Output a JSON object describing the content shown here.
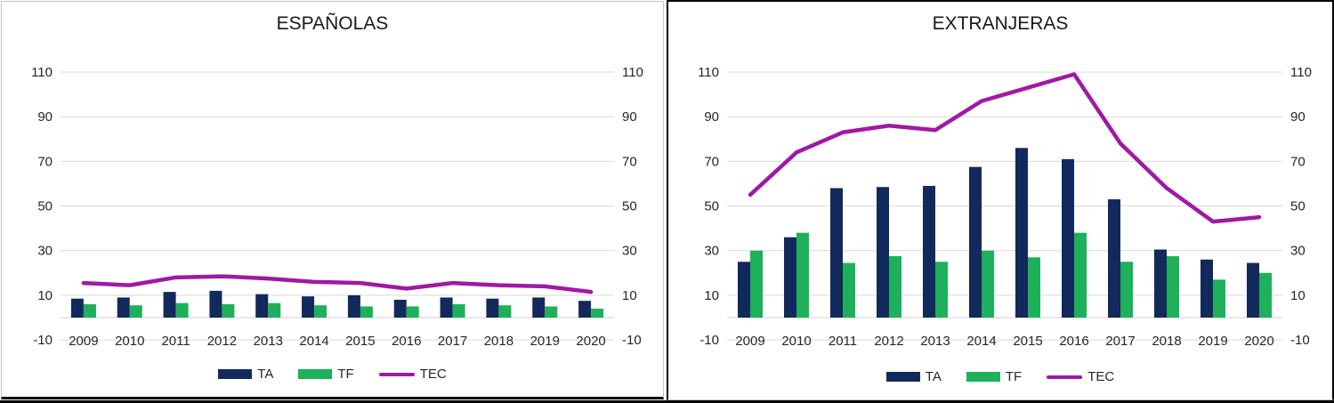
{
  "colors": {
    "ta_bar": "#12295B",
    "tf_bar": "#1EB05A",
    "tec_line": "#A019A5",
    "gridline": "#D9D9D9",
    "text": "#262626"
  },
  "chart_data": [
    {
      "type": "bar",
      "title": "ESPAÑOLAS",
      "categories": [
        "2009",
        "2010",
        "2011",
        "2012",
        "2013",
        "2014",
        "2015",
        "2016",
        "2017",
        "2018",
        "2019",
        "2020"
      ],
      "series": [
        {
          "name": "TA",
          "type": "bar",
          "color": "#12295B",
          "values": [
            8.5,
            9,
            11.5,
            12,
            10.5,
            9.5,
            10,
            8,
            9,
            8.5,
            9,
            7.5
          ]
        },
        {
          "name": "TF",
          "type": "bar",
          "color": "#1EB05A",
          "values": [
            6,
            5.5,
            6.5,
            6,
            6.5,
            5.5,
            5,
            5,
            6,
            5.5,
            5,
            4
          ]
        },
        {
          "name": "TEC",
          "type": "line",
          "color": "#A019A5",
          "values": [
            15.5,
            14.5,
            18,
            18.5,
            17.5,
            16,
            15.5,
            13,
            15.5,
            14.5,
            14,
            11.5
          ]
        }
      ],
      "xlabel": "",
      "ylabel": "",
      "ylim": [
        -10,
        110
      ],
      "yticks": [
        -10,
        10,
        30,
        50,
        70,
        90,
        110
      ],
      "dual_axis": true,
      "grid": true,
      "legend_position": "bottom"
    },
    {
      "type": "bar",
      "title": "EXTRANJERAS",
      "categories": [
        "2009",
        "2010",
        "2011",
        "2012",
        "2013",
        "2014",
        "2015",
        "2016",
        "2017",
        "2018",
        "2019",
        "2020"
      ],
      "series": [
        {
          "name": "TA",
          "type": "bar",
          "color": "#12295B",
          "values": [
            25,
            36,
            58,
            58.5,
            59,
            67.5,
            76,
            71,
            53,
            30.5,
            26,
            24.5
          ]
        },
        {
          "name": "TF",
          "type": "bar",
          "color": "#1EB05A",
          "values": [
            30,
            38,
            24.5,
            27.5,
            25,
            30,
            27,
            38,
            25,
            27.5,
            17,
            20
          ]
        },
        {
          "name": "TEC",
          "type": "line",
          "color": "#A019A5",
          "values": [
            55,
            74,
            83,
            86,
            84,
            97,
            103,
            109,
            78,
            58,
            43,
            45
          ]
        }
      ],
      "xlabel": "",
      "ylabel": "",
      "ylim": [
        -10,
        110
      ],
      "yticks": [
        -10,
        10,
        30,
        50,
        70,
        90,
        110
      ],
      "dual_axis": true,
      "grid": true,
      "legend_position": "bottom"
    }
  ]
}
